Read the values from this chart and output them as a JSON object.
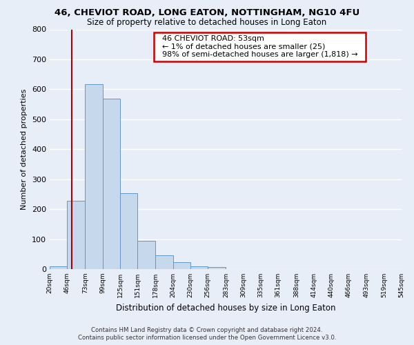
{
  "title": "46, CHEVIOT ROAD, LONG EATON, NOTTINGHAM, NG10 4FU",
  "subtitle": "Size of property relative to detached houses in Long Eaton",
  "xlabel": "Distribution of detached houses by size in Long Eaton",
  "ylabel": "Number of detached properties",
  "bar_values": [
    10,
    228,
    617,
    568,
    253,
    95,
    47,
    22,
    10,
    8,
    0,
    0,
    0,
    0,
    0,
    0,
    0,
    0,
    0,
    0
  ],
  "bar_left_edges": [
    20,
    46,
    73,
    99,
    125,
    151,
    178,
    204,
    230,
    256,
    283,
    309,
    335,
    361,
    388,
    414,
    440,
    466,
    493,
    519
  ],
  "bar_widths": [
    26,
    27,
    26,
    26,
    26,
    27,
    26,
    26,
    26,
    27,
    26,
    26,
    26,
    27,
    26,
    26,
    26,
    27,
    26,
    26
  ],
  "tick_labels": [
    "20sqm",
    "46sqm",
    "73sqm",
    "99sqm",
    "125sqm",
    "151sqm",
    "178sqm",
    "204sqm",
    "230sqm",
    "256sqm",
    "283sqm",
    "309sqm",
    "335sqm",
    "361sqm",
    "388sqm",
    "414sqm",
    "440sqm",
    "466sqm",
    "493sqm",
    "519sqm",
    "545sqm"
  ],
  "tick_positions": [
    20,
    46,
    73,
    99,
    125,
    151,
    178,
    204,
    230,
    256,
    283,
    309,
    335,
    361,
    388,
    414,
    440,
    466,
    493,
    519,
    545
  ],
  "ylim": [
    0,
    800
  ],
  "yticks": [
    0,
    100,
    200,
    300,
    400,
    500,
    600,
    700,
    800
  ],
  "bar_color": "#c6d9ec",
  "bar_edge_color": "#6096c8",
  "ref_line_x": 53,
  "ref_line_color": "#aa0000",
  "annotation_title": "46 CHEVIOT ROAD: 53sqm",
  "annotation_line1": "← 1% of detached houses are smaller (25)",
  "annotation_line2": "98% of semi-detached houses are larger (1,818) →",
  "annotation_box_color": "#ffffff",
  "annotation_box_edge": "#cc0000",
  "footer_line1": "Contains HM Land Registry data © Crown copyright and database right 2024.",
  "footer_line2": "Contains public sector information licensed under the Open Government Licence v3.0.",
  "background_color": "#e8eef8",
  "plot_bg_color": "#e8eef8",
  "grid_color": "#ffffff",
  "xlim": [
    20,
    545
  ]
}
